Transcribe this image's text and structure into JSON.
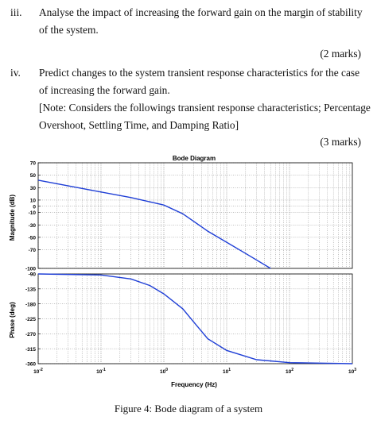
{
  "questions": [
    {
      "number": "iii.",
      "lines": [
        "Analyse the impact of increasing the forward gain on the margin of stability",
        "of the system."
      ],
      "marks": "(2 marks)"
    },
    {
      "number": "iv.",
      "lines": [
        "Predict changes to the system transient response characteristics for the case",
        "of increasing the forward gain.",
        "[Note: Considers the followings transient response characteristics; Percentage",
        "Overshoot, Settling Time, and Damping Ratio]"
      ],
      "marks": "(3 marks)"
    }
  ],
  "chart_data": {
    "type": "line",
    "title": "Bode Diagram",
    "xlabel": "Frequency (Hz)",
    "x_scale": "log",
    "x_ticks": [
      "10^-2",
      "10^-1",
      "10^0",
      "10^1",
      "10^2",
      "10^3"
    ],
    "xlim": [
      0.01,
      1000
    ],
    "magnitude": {
      "ylabel": "Magnitude (dB)",
      "ylim": [
        -100,
        70
      ],
      "yticks": [
        70,
        50,
        30,
        10,
        0,
        -10,
        -30,
        -50,
        -70,
        -100
      ],
      "x": [
        0.01,
        0.1,
        0.3,
        1,
        2,
        5,
        10,
        20,
        50
      ],
      "y": [
        42,
        23,
        14,
        2,
        -12,
        -40,
        -58,
        -76,
        -100
      ]
    },
    "phase": {
      "ylabel": "Phase (deg)",
      "ylim": [
        -360,
        -90
      ],
      "yticks": [
        -90,
        -135,
        -180,
        -225,
        -270,
        -315,
        -360
      ],
      "x": [
        0.01,
        0.1,
        0.3,
        0.6,
        1,
        2,
        3,
        5,
        10,
        30,
        100,
        1000
      ],
      "y": [
        -90,
        -93,
        -105,
        -125,
        -150,
        -195,
        -235,
        -285,
        -320,
        -348,
        -357,
        -360
      ]
    },
    "line_color": "#1f3fd6",
    "grid": "dotted"
  },
  "caption": "Figure 4: Bode diagram of a system"
}
